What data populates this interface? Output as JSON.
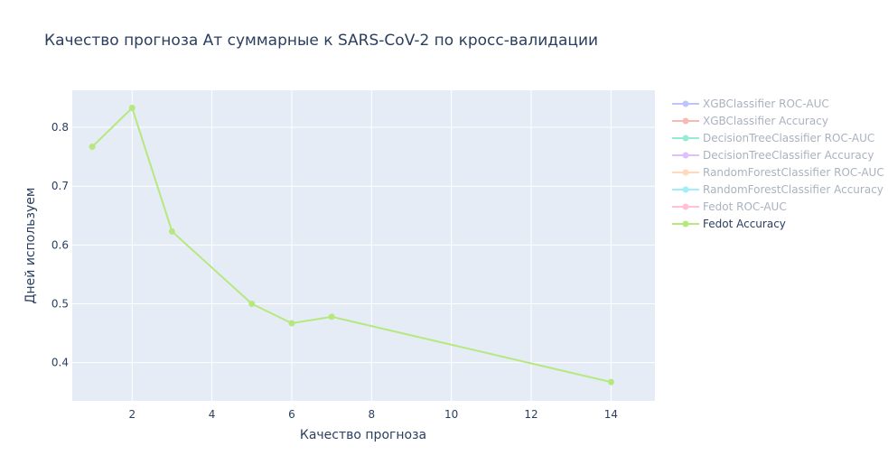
{
  "chart_data": {
    "type": "line",
    "title": "Качество прогноза Ат суммарные к SARS-CoV-2 по кросс-валидации",
    "xlabel": "Качество прогноза",
    "ylabel": "Дней используем",
    "xlim": [
      0.5,
      15.1
    ],
    "ylim": [
      0.335,
      0.863
    ],
    "xticks": [
      2,
      4,
      6,
      8,
      10,
      12,
      14
    ],
    "yticks": [
      0.4,
      0.5,
      0.6,
      0.7,
      0.8
    ],
    "grid": true,
    "legend_position": "right",
    "colors": {
      "plot_bg": "#e5ecf6",
      "grid": "#ffffff",
      "text": "#2a3f5f"
    },
    "series": [
      {
        "name": "XGBClassifier ROC-AUC",
        "color": "#636efa",
        "visible": false,
        "x": [],
        "y": []
      },
      {
        "name": "XGBClassifier Accuracy",
        "color": "#ef553b",
        "visible": false,
        "x": [],
        "y": []
      },
      {
        "name": "DecisionTreeClassifier ROC-AUC",
        "color": "#00cc96",
        "visible": false,
        "x": [],
        "y": []
      },
      {
        "name": "DecisionTreeClassifier Accuracy",
        "color": "#ab63fa",
        "visible": false,
        "x": [],
        "y": []
      },
      {
        "name": "RandomForestClassifier ROC-AUC",
        "color": "#ffa15a",
        "visible": false,
        "x": [],
        "y": []
      },
      {
        "name": "RandomForestClassifier Accuracy",
        "color": "#19d3f3",
        "visible": false,
        "x": [],
        "y": []
      },
      {
        "name": "Fedot ROC-AUC",
        "color": "#ff6692",
        "visible": false,
        "x": [],
        "y": []
      },
      {
        "name": "Fedot Accuracy",
        "color": "#b6e880",
        "visible": true,
        "x": [
          1,
          2,
          3,
          5,
          6,
          7,
          14
        ],
        "y": [
          0.767,
          0.833,
          0.623,
          0.5,
          0.467,
          0.478,
          0.367
        ]
      }
    ]
  }
}
